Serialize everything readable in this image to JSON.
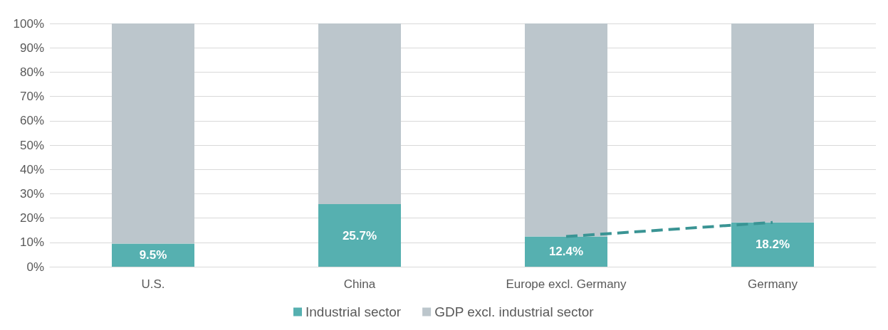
{
  "chart_data": {
    "type": "bar",
    "stacked": true,
    "categories": [
      "U.S.",
      "China",
      "Europe excl. Germany",
      "Germany"
    ],
    "series": [
      {
        "name": "Industrial sector",
        "color": "#56b0b0",
        "values": [
          9.5,
          25.7,
          12.4,
          18.2
        ],
        "value_labels": [
          "9.5%",
          "25.7%",
          "12.4%",
          "18.2%"
        ]
      },
      {
        "name": "GDP excl. industrial sector",
        "color": "#bcc6cc",
        "values": [
          90.5,
          74.3,
          87.6,
          81.8
        ]
      },
      {
        "type": "line",
        "color": "#3a9494",
        "values": [
          null,
          null,
          12.4,
          18.2
        ],
        "line_style": "dashed",
        "marker": "none"
      }
    ],
    "ylim": [
      0,
      100
    ],
    "yticks": [
      {
        "value": 0,
        "label": "0%"
      },
      {
        "value": 10,
        "label": "10%"
      },
      {
        "value": 20,
        "label": "20%"
      },
      {
        "value": 30,
        "label": "30%"
      },
      {
        "value": 40,
        "label": "40%"
      },
      {
        "value": 50,
        "label": "50%"
      },
      {
        "value": 60,
        "label": "60%"
      },
      {
        "value": 70,
        "label": "70%"
      },
      {
        "value": 80,
        "label": "80%"
      },
      {
        "value": 90,
        "label": "90%"
      },
      {
        "value": 100,
        "label": "100%"
      }
    ],
    "grid": "y",
    "legend": "bottom"
  }
}
